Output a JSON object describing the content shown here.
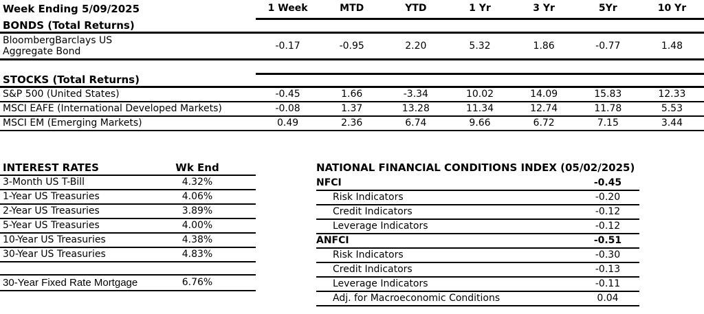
{
  "report": {
    "accent_color": "#000000",
    "background_color": "#ffffff"
  },
  "top_table": {
    "title": "Week Ending 5/09/2025",
    "columns": [
      "1 Week",
      "MTD",
      "YTD",
      "1 Yr",
      "3 Yr",
      "5Yr",
      "10 Yr"
    ],
    "bonds_heading": "BONDS (Total Returns)",
    "bond_row": {
      "label_line1": "BloombergBarclays US",
      "label_line2": "Aggregate Bond",
      "values": [
        "-0.17",
        "-0.95",
        "2.20",
        "5.32",
        "1.86",
        "-0.77",
        "1.48"
      ]
    },
    "stocks_heading": "STOCKS (Total Returns)",
    "stock_rows": [
      {
        "label": "S&P 500 (United States)",
        "values": [
          "-0.45",
          "1.66",
          "-3.34",
          "10.02",
          "14.09",
          "15.83",
          "12.33"
        ]
      },
      {
        "label": "MSCI EAFE (International Developed Markets)",
        "values": [
          "-0.08",
          "1.37",
          "13.28",
          "11.34",
          "12.74",
          "11.78",
          "5.53"
        ]
      },
      {
        "label": "MSCI EM (Emerging Markets)",
        "values": [
          "0.49",
          "2.36",
          "6.74",
          "9.66",
          "6.72",
          "7.15",
          "3.44"
        ]
      }
    ]
  },
  "interest_rates": {
    "title": "INTEREST RATES",
    "column_header": "Wk End",
    "rows": [
      {
        "label": "3-Month US T-Bill",
        "value": "4.32%"
      },
      {
        "label": "1-Year US Treasuries",
        "value": "4.06%"
      },
      {
        "label": "2-Year US Treasuries",
        "value": "3.89%"
      },
      {
        "label": "5-Year US Treasuries",
        "value": "4.00%"
      },
      {
        "label": "10-Year US Treasuries",
        "value": "4.38%"
      },
      {
        "label": "30-Year US Treasuries",
        "value": "4.83%"
      }
    ],
    "mortgage_row": {
      "label": "30-Year Fixed Rate Mortgage",
      "value": "6.76%"
    }
  },
  "nfci": {
    "title": "NATIONAL FINANCIAL CONDITIONS INDEX (05/02/2025)",
    "rows": [
      {
        "label": "NFCI",
        "value": "-0.45"
      },
      {
        "label": "Risk Indicators",
        "value": "-0.20"
      },
      {
        "label": "Credit Indicators",
        "value": "-0.12"
      },
      {
        "label": "Leverage Indicators",
        "value": "-0.12"
      },
      {
        "label": "ANFCI",
        "value": "-0.51"
      },
      {
        "label": "Risk Indicators",
        "value": "-0.30"
      },
      {
        "label": "Credit Indicators",
        "value": "-0.13"
      },
      {
        "label": "Leverage Indicators",
        "value": "-0.11"
      },
      {
        "label": "Adj. for Macroeconomic Conditions",
        "value": "0.04"
      }
    ]
  }
}
